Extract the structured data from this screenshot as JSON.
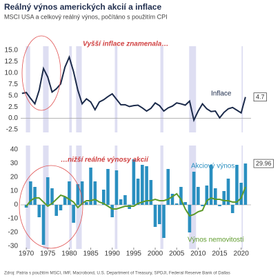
{
  "title": "Reálný výnos amerických akcií a inflace",
  "subtitle": "MSCI USA a celkový reálný výnos, počítáno s použitím CPI",
  "source": "Zdroj: Patria s použitím MSCI, IMF, Macrobond, U.S. Department of Treasury, SPDJI, Federal Reserve Bank of Dallas",
  "recessions": [
    [
      1969.9,
      1970.9
    ],
    [
      1973.9,
      1975.2
    ],
    [
      1980.0,
      1980.6
    ],
    [
      1981.6,
      1982.9
    ],
    [
      1990.6,
      1991.2
    ],
    [
      2001.2,
      2001.9
    ],
    [
      2007.9,
      2009.5
    ],
    [
      2020.1,
      2020.4
    ]
  ],
  "recession_color": "#dedef2",
  "chart_data": [
    {
      "type": "line",
      "annotation": "Vyšší inflace znamenala…",
      "x": [
        1969,
        1970,
        1971,
        1972,
        1973,
        1974,
        1975,
        1976,
        1977,
        1978,
        1979,
        1980,
        1981,
        1982,
        1983,
        1984,
        1985,
        1986,
        1987,
        1988,
        1989,
        1990,
        1991,
        1992,
        1993,
        1994,
        1995,
        1996,
        1997,
        1998,
        1999,
        2000,
        2001,
        2002,
        2003,
        2004,
        2005,
        2006,
        2007,
        2008,
        2009,
        2010,
        2011,
        2012,
        2013,
        2014,
        2015,
        2016,
        2017,
        2018,
        2019,
        2020,
        2021
      ],
      "series": [
        {
          "name": "Inflace",
          "color": "#1b2a4a",
          "values": [
            5.5,
            5.7,
            4.4,
            3.2,
            6.2,
            11.0,
            9.1,
            5.8,
            6.5,
            7.6,
            11.3,
            13.5,
            10.3,
            6.2,
            3.2,
            4.3,
            3.6,
            1.9,
            3.6,
            4.1,
            4.8,
            5.4,
            4.2,
            3.0,
            3.0,
            2.6,
            2.8,
            2.9,
            2.3,
            1.6,
            2.2,
            3.4,
            2.8,
            1.6,
            2.3,
            2.7,
            3.4,
            3.2,
            2.9,
            3.8,
            -0.4,
            1.6,
            3.2,
            2.1,
            1.5,
            1.6,
            0.1,
            1.3,
            2.1,
            2.4,
            1.8,
            1.2,
            4.7
          ]
        }
      ],
      "xlim": [
        1968.7,
        2022.3
      ],
      "ylim": [
        -2.5,
        15
      ],
      "yticks": [
        {
          "value": -2.5,
          "label": "-2.5"
        },
        {
          "value": 0,
          "label": "0.0"
        },
        {
          "value": 2.5,
          "label": "2.5"
        },
        {
          "value": 5,
          "label": "5.0"
        },
        {
          "value": 7.5,
          "label": "7.5"
        },
        {
          "value": 10,
          "label": "10.0"
        },
        {
          "value": 12.5,
          "label": "12.5"
        },
        {
          "value": 15,
          "label": "15.0"
        }
      ]
    },
    {
      "type": "bar",
      "annotation": "…nižší reálné výnosy akcií",
      "x": [
        1970,
        1971,
        1972,
        1973,
        1974,
        1975,
        1976,
        1977,
        1978,
        1979,
        1980,
        1981,
        1982,
        1983,
        1984,
        1985,
        1986,
        1987,
        1988,
        1989,
        1990,
        1991,
        1992,
        1993,
        1994,
        1995,
        1996,
        1997,
        1998,
        1999,
        2000,
        2001,
        2002,
        2003,
        2004,
        2005,
        2006,
        2007,
        2008,
        2009,
        2010,
        2011,
        2012,
        2013,
        2014,
        2015,
        2016,
        2017,
        2018,
        2019,
        2020,
        2021
      ],
      "series": [
        {
          "name": "Akciový výnos",
          "type": "bar",
          "color": "#2a8fc0",
          "values": [
            -2,
            17,
            13,
            -9,
            -29,
            20,
            12,
            -8,
            -4,
            6,
            17,
            -13,
            15,
            17,
            2,
            27,
            17,
            0,
            11,
            26,
            -9,
            25,
            4,
            7,
            -3,
            33,
            19,
            29,
            28,
            18,
            -16,
            -14,
            -24,
            26,
            8,
            1,
            13,
            2,
            -20,
            24,
            13,
            -1,
            14,
            29,
            12,
            -1,
            10,
            19,
            -6,
            29,
            16,
            29.96
          ]
        },
        {
          "name": "Výnos nemovitostí",
          "type": "line",
          "color": "#5d9a2a",
          "values": [
            -1,
            3,
            5,
            5,
            2,
            -1,
            1,
            4,
            7,
            6,
            4,
            2,
            -2,
            1,
            3,
            3,
            4,
            2,
            1,
            -1,
            -3,
            -3,
            -2,
            -1,
            -1,
            -1,
            1,
            2,
            3,
            3,
            4,
            3,
            3,
            4,
            6,
            8,
            4,
            -3,
            -8,
            -7,
            -5,
            -4,
            3,
            5,
            4,
            4,
            3,
            3,
            2,
            2,
            5,
            13
          ]
        }
      ],
      "xlim": [
        1968.7,
        2022.3
      ],
      "ylim": [
        -30,
        40
      ],
      "yticks": [
        -30,
        -20,
        -10,
        0,
        10,
        20,
        30,
        40
      ],
      "xticks": [
        1970,
        1975,
        1980,
        1985,
        1990,
        1995,
        2000,
        2005,
        2010,
        2015,
        2020
      ]
    }
  ]
}
